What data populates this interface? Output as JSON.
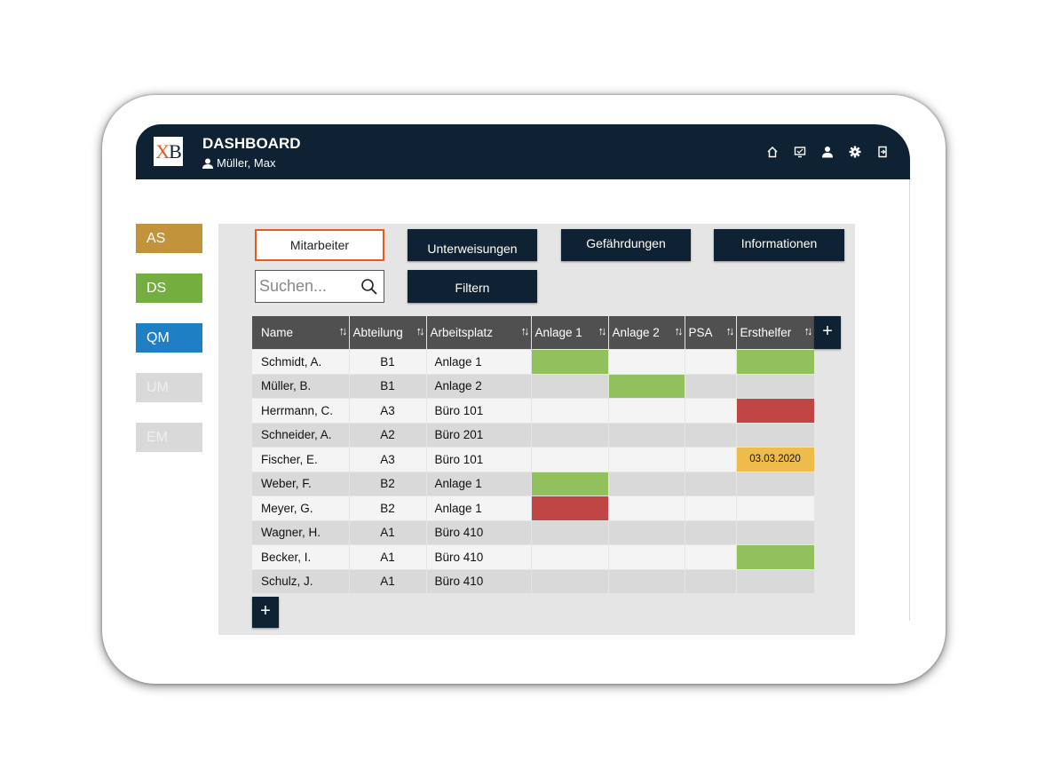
{
  "header": {
    "logo": {
      "x": "X",
      "b": "B"
    },
    "title": "DASHBOARD",
    "user": "Müller, Max",
    "icons": [
      "home-icon",
      "monitor-icon",
      "user-icon",
      "gear-icon",
      "logout-icon"
    ]
  },
  "sidebar": [
    {
      "label": "AS",
      "color": "#c2933a",
      "enabled": true
    },
    {
      "label": "DS",
      "color": "#74ae3f",
      "enabled": true
    },
    {
      "label": "QM",
      "color": "#1f7fc4",
      "enabled": true
    },
    {
      "label": "UM",
      "color": "#d9d9d9",
      "enabled": false
    },
    {
      "label": "EM",
      "color": "#d9d9d9",
      "enabled": false
    }
  ],
  "tabs": {
    "mitarbeiter": "Mitarbeiter",
    "unterweisungen": "Unterweisungen",
    "gefaehrdungen": "Gefährdungen",
    "informationen": "Informationen"
  },
  "search": {
    "placeholder": "Suchen..."
  },
  "filter_label": "Filtern",
  "table": {
    "columns": [
      "Name",
      "Abteilung",
      "Arbeitsplatz",
      "Anlage 1",
      "Anlage 2",
      "PSA",
      "Ersthelfer"
    ],
    "sort_glyph": "↑↓",
    "add_column_label": "+",
    "add_row_label": "+",
    "rows": [
      {
        "name": "Schmidt, A.",
        "abteilung": "B1",
        "arbeitsplatz": "Anlage 1",
        "anlage1": "green",
        "anlage2": "",
        "psa": "",
        "ersthelfer": "green",
        "ersthelfer_text": ""
      },
      {
        "name": "Müller, B.",
        "abteilung": "B1",
        "arbeitsplatz": "Anlage 2",
        "anlage1": "",
        "anlage2": "green",
        "psa": "",
        "ersthelfer": "",
        "ersthelfer_text": ""
      },
      {
        "name": "Herrmann, C.",
        "abteilung": "A3",
        "arbeitsplatz": "Büro 101",
        "anlage1": "",
        "anlage2": "",
        "psa": "",
        "ersthelfer": "red",
        "ersthelfer_text": ""
      },
      {
        "name": "Schneider, A.",
        "abteilung": "A2",
        "arbeitsplatz": "Büro 201",
        "anlage1": "",
        "anlage2": "",
        "psa": "",
        "ersthelfer": "",
        "ersthelfer_text": ""
      },
      {
        "name": "Fischer, E.",
        "abteilung": "A3",
        "arbeitsplatz": "Büro 101",
        "anlage1": "",
        "anlage2": "",
        "psa": "",
        "ersthelfer": "yellow",
        "ersthelfer_text": "03.03.2020"
      },
      {
        "name": "Weber, F.",
        "abteilung": "B2",
        "arbeitsplatz": "Anlage 1",
        "anlage1": "green",
        "anlage2": "",
        "psa": "",
        "ersthelfer": "",
        "ersthelfer_text": ""
      },
      {
        "name": "Meyer, G.",
        "abteilung": "B2",
        "arbeitsplatz": "Anlage 1",
        "anlage1": "red",
        "anlage2": "",
        "psa": "",
        "ersthelfer": "",
        "ersthelfer_text": ""
      },
      {
        "name": "Wagner, H.",
        "abteilung": "A1",
        "arbeitsplatz": "Büro 410",
        "anlage1": "",
        "anlage2": "",
        "psa": "",
        "ersthelfer": "",
        "ersthelfer_text": ""
      },
      {
        "name": "Becker, I.",
        "abteilung": "A1",
        "arbeitsplatz": "Büro 410",
        "anlage1": "",
        "anlage2": "",
        "psa": "",
        "ersthelfer": "green",
        "ersthelfer_text": ""
      },
      {
        "name": "Schulz, J.",
        "abteilung": "A1",
        "arbeitsplatz": "Büro 410",
        "anlage1": "",
        "anlage2": "",
        "psa": "",
        "ersthelfer": "",
        "ersthelfer_text": ""
      }
    ]
  }
}
